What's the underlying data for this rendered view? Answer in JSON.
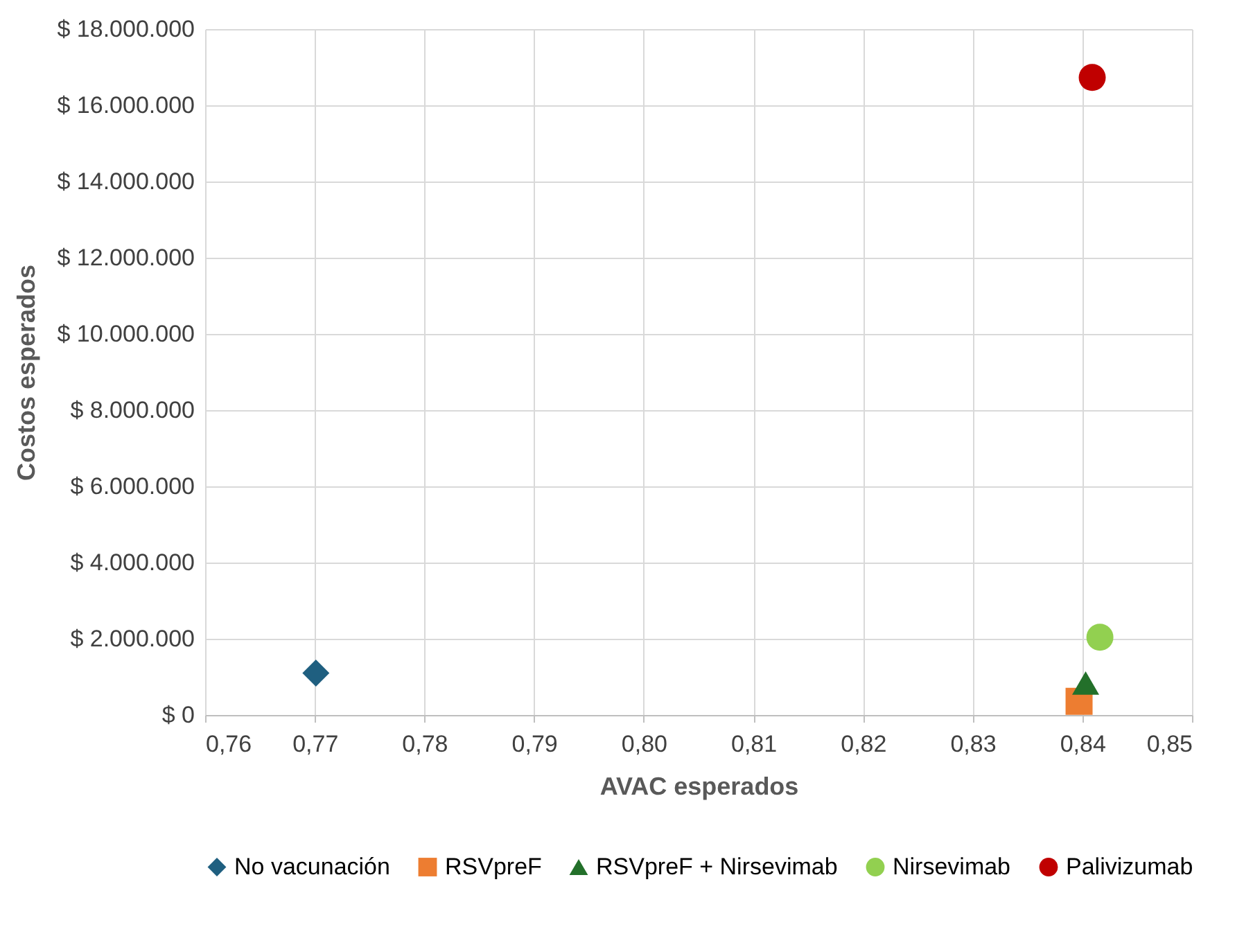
{
  "chart_data": {
    "type": "scatter",
    "xlabel": "AVAC esperados",
    "ylabel": "Costos esperados",
    "xlim": [
      0.76,
      0.85
    ],
    "xticks": [
      {
        "value": 0.76,
        "label": "0,76"
      },
      {
        "value": 0.77,
        "label": "0,77"
      },
      {
        "value": 0.78,
        "label": "0,78"
      },
      {
        "value": 0.79,
        "label": "0,79"
      },
      {
        "value": 0.8,
        "label": "0,80"
      },
      {
        "value": 0.81,
        "label": "0,81"
      },
      {
        "value": 0.82,
        "label": "0,82"
      },
      {
        "value": 0.83,
        "label": "0,83"
      },
      {
        "value": 0.84,
        "label": "0,84"
      },
      {
        "value": 0.85,
        "label": "0,85"
      }
    ],
    "ylim": [
      0,
      18000000
    ],
    "yticks": [
      {
        "value": 0,
        "label": "$ 0"
      },
      {
        "value": 2000000,
        "label": "$ 2.000.000"
      },
      {
        "value": 4000000,
        "label": "$ 4.000.000"
      },
      {
        "value": 6000000,
        "label": "$ 6.000.000"
      },
      {
        "value": 8000000,
        "label": "$ 8.000.000"
      },
      {
        "value": 10000000,
        "label": "$ 10.000.000"
      },
      {
        "value": 12000000,
        "label": "$ 12.000.000"
      },
      {
        "value": 14000000,
        "label": "$ 14.000.000"
      },
      {
        "value": 16000000,
        "label": "$ 16.000.000"
      },
      {
        "value": 18000000,
        "label": "$ 18.000.000"
      }
    ],
    "grid": true,
    "legend": "bottom",
    "series": [
      {
        "name": "No vacunación",
        "color": "#1f5f80",
        "marker": "diamond",
        "x": [
          0.7701
        ],
        "values": [
          1100000
        ]
      },
      {
        "name": "RSVpreF",
        "color": "#ed7d31",
        "marker": "square",
        "x": [
          0.8397
        ],
        "values": [
          360000
        ]
      },
      {
        "name": "RSVpreF + Nirsevimab",
        "color": "#23702a",
        "marker": "triangle",
        "x": [
          0.8403
        ],
        "values": [
          840000
        ]
      },
      {
        "name": "Nirsevimab",
        "color": "#92d050",
        "marker": "circle",
        "x": [
          0.8416
        ],
        "values": [
          2040000
        ]
      },
      {
        "name": "Palivizumab",
        "color": "#c00000",
        "marker": "circle",
        "x": [
          0.8409
        ],
        "values": [
          16730000
        ]
      }
    ]
  }
}
